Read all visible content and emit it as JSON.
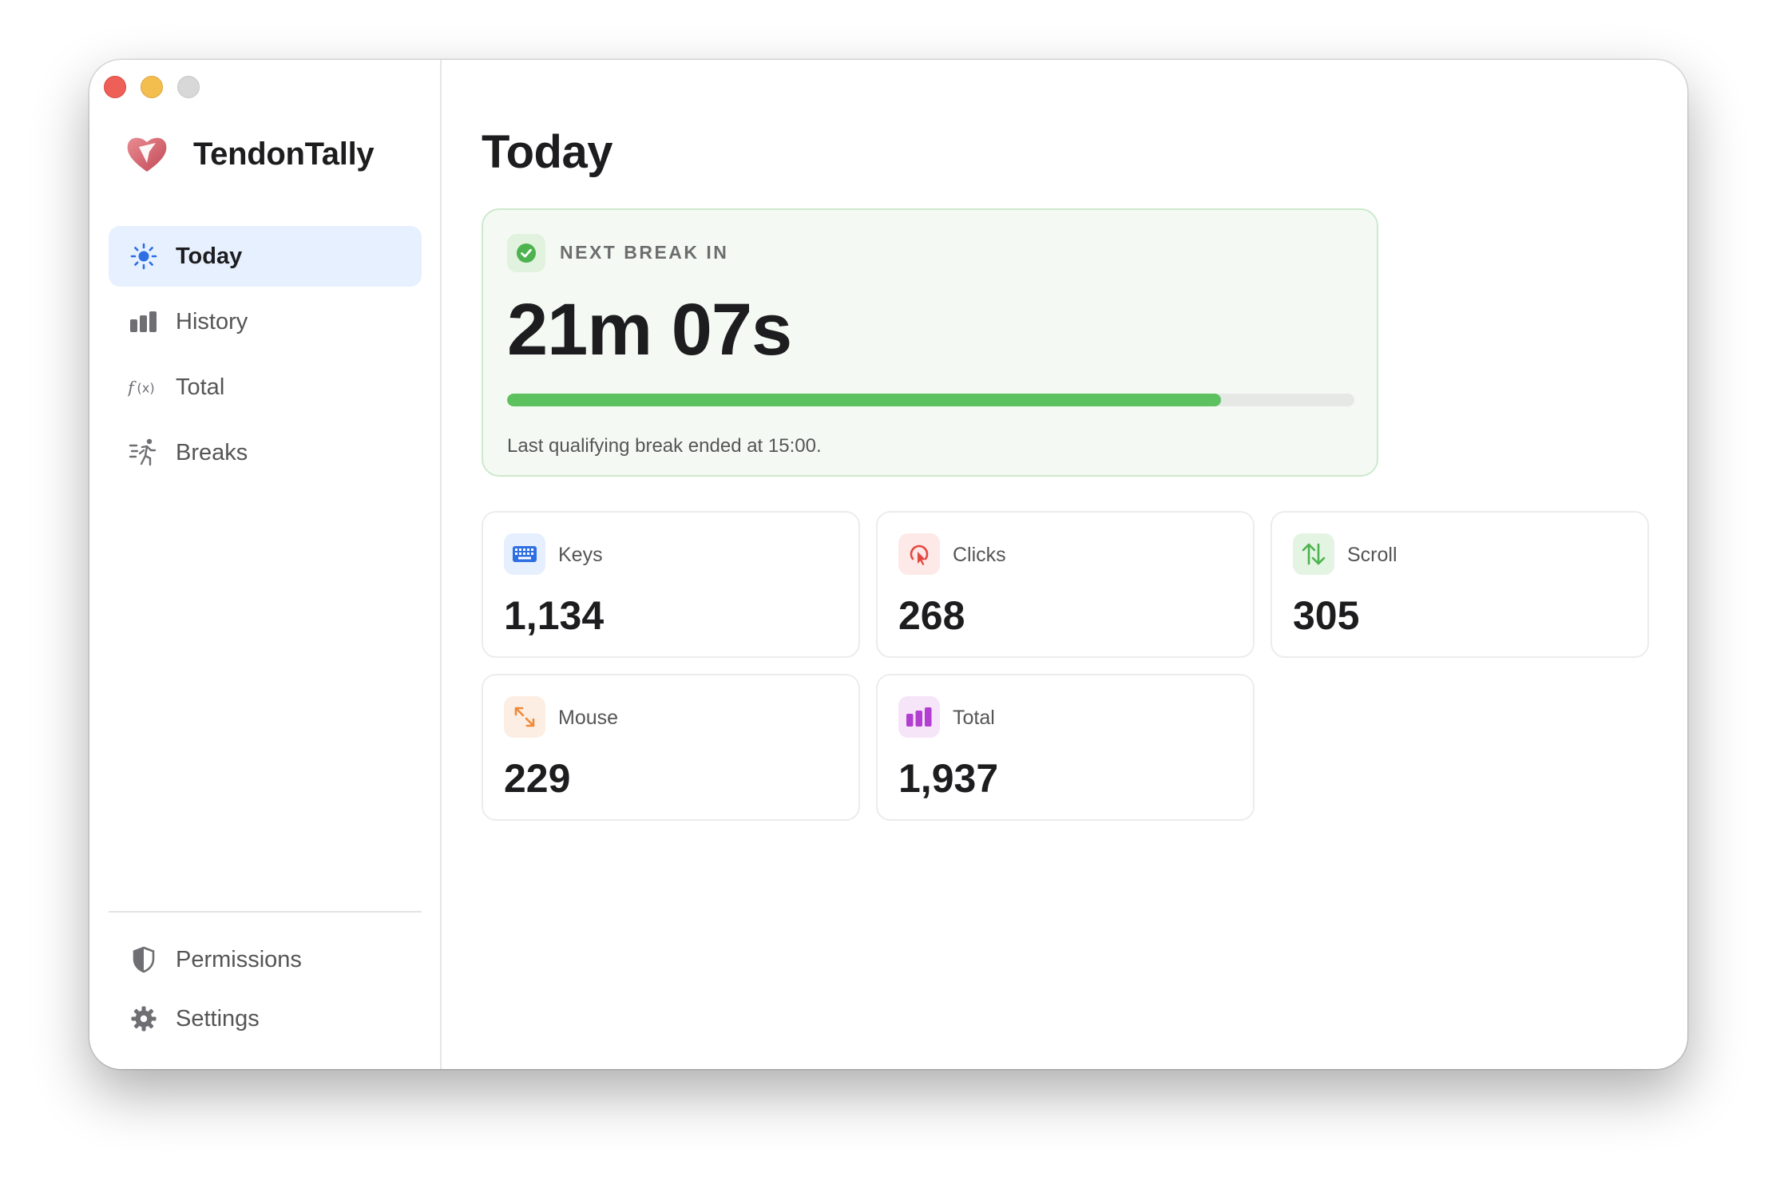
{
  "app": {
    "name": "TendonTally"
  },
  "sidebar": {
    "items": [
      {
        "label": "Today",
        "icon": "sun-icon",
        "active": true
      },
      {
        "label": "History",
        "icon": "bar-chart-icon",
        "active": false
      },
      {
        "label": "Total",
        "icon": "function-icon",
        "active": false
      },
      {
        "label": "Breaks",
        "icon": "running-figure-icon",
        "active": false
      }
    ],
    "bottom_items": [
      {
        "label": "Permissions",
        "icon": "shield-icon"
      },
      {
        "label": "Settings",
        "icon": "gear-icon"
      }
    ]
  },
  "main": {
    "title": "Today",
    "next_break": {
      "label": "NEXT BREAK IN",
      "time": "21m 07s",
      "progress_fraction": 0.843,
      "note": "Last qualifying break ended at 15:00."
    },
    "stats": [
      {
        "label": "Keys",
        "value": "1,134",
        "icon": "keyboard-icon"
      },
      {
        "label": "Clicks",
        "value": "268",
        "icon": "cursor-click-icon"
      },
      {
        "label": "Scroll",
        "value": "305",
        "icon": "scroll-arrows-icon"
      },
      {
        "label": "Mouse",
        "value": "229",
        "icon": "mouse-move-arrows-icon"
      },
      {
        "label": "Total",
        "value": "1,937",
        "icon": "bar-chart-icon"
      }
    ]
  },
  "colors": {
    "accent_blue": "#2f6fe4",
    "active_nav_bg": "#e6f0fe",
    "break_green": "#5cc15f",
    "break_card_bg": "#f4faf3"
  }
}
